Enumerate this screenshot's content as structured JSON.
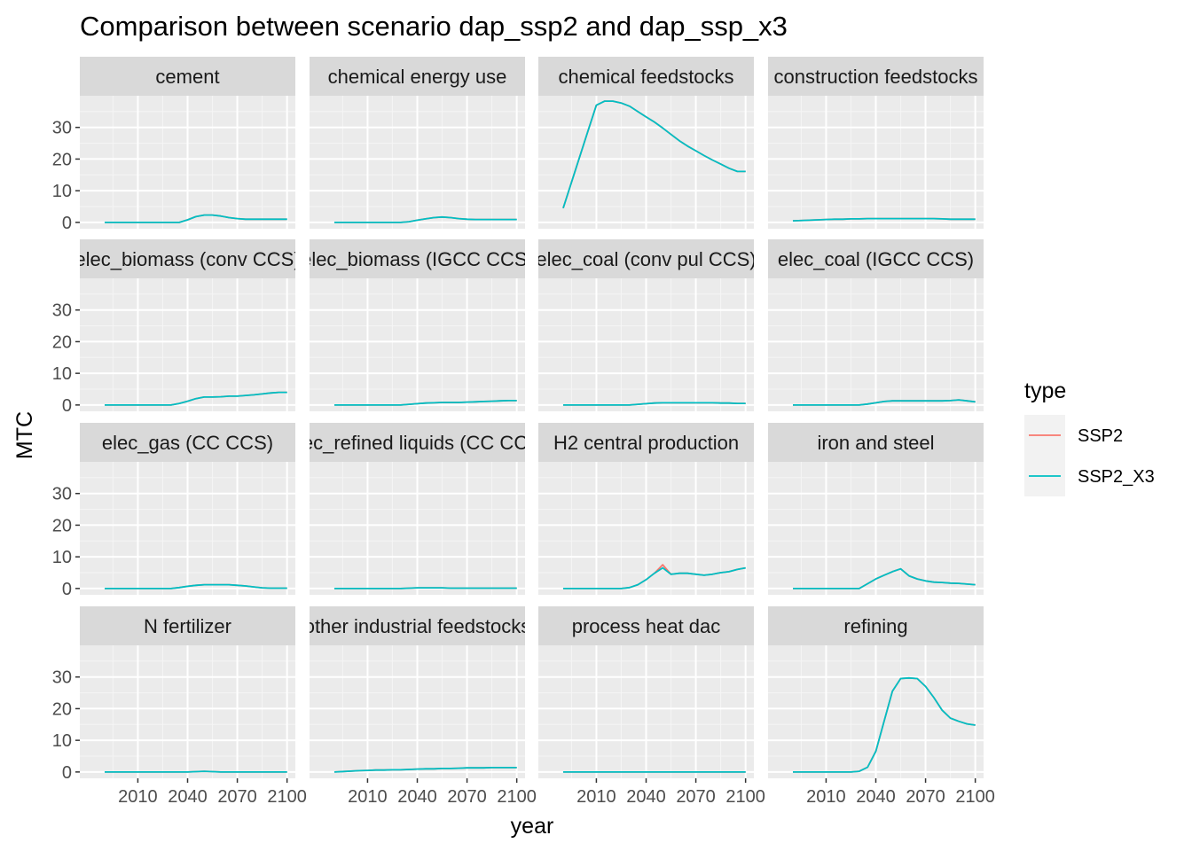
{
  "chart_data": {
    "type": "line",
    "title": "Comparison between scenario dap_ssp2 and dap_ssp_x3",
    "xlabel": "year",
    "ylabel": "MTC",
    "xlim": [
      1975,
      2105
    ],
    "ylim": [
      -2,
      40
    ],
    "x_ticks": [
      2010,
      2040,
      2070,
      2100
    ],
    "x_tick_labels": [
      "2010",
      "2040",
      "2070",
      "2100"
    ],
    "y_ticks": [
      0,
      10,
      20,
      30
    ],
    "y_tick_labels": [
      "0",
      "10",
      "20",
      "30"
    ],
    "grid": true,
    "facet_layout": {
      "rows": 4,
      "cols": 4
    },
    "legend": {
      "title": "type",
      "position": "right",
      "entries": [
        {
          "label": "SSP2",
          "color": "#F8766D"
        },
        {
          "label": "SSP2_X3",
          "color": "#00BFC4"
        }
      ]
    },
    "x": [
      1990,
      2005,
      2010,
      2015,
      2020,
      2025,
      2030,
      2035,
      2040,
      2045,
      2050,
      2055,
      2060,
      2065,
      2070,
      2075,
      2080,
      2085,
      2090,
      2095,
      2100
    ],
    "panels": [
      {
        "label": "cement",
        "series": [
          {
            "name": "SSP2",
            "values": [
              0,
              0,
              0,
              0,
              0,
              0,
              0,
              0,
              0.8,
              1.8,
              2.3,
              2.3,
              2.0,
              1.5,
              1.2,
              1.0,
              1.0,
              1.0,
              1.0,
              1.0,
              1.0
            ]
          },
          {
            "name": "SSP2_X3",
            "values": [
              0,
              0,
              0,
              0,
              0,
              0,
              0,
              0,
              0.8,
              1.8,
              2.3,
              2.3,
              2.0,
              1.5,
              1.2,
              1.0,
              1.0,
              1.0,
              1.0,
              1.0,
              1.0
            ]
          }
        ]
      },
      {
        "label": "chemical energy use",
        "series": [
          {
            "name": "SSP2",
            "values": [
              0,
              0,
              0,
              0,
              0,
              0,
              0,
              0.2,
              0.7,
              1.1,
              1.5,
              1.7,
              1.5,
              1.2,
              1.0,
              0.9,
              0.9,
              0.9,
              0.9,
              0.9,
              0.9
            ]
          },
          {
            "name": "SSP2_X3",
            "values": [
              0,
              0,
              0,
              0,
              0,
              0,
              0,
              0.2,
              0.7,
              1.1,
              1.5,
              1.7,
              1.5,
              1.2,
              1.0,
              0.9,
              0.9,
              0.9,
              0.9,
              0.9,
              0.9
            ]
          }
        ]
      },
      {
        "label": "chemical feedstocks",
        "series": [
          {
            "name": "SSP2",
            "values": [
              4.5,
              29,
              37,
              38.3,
              38.3,
              37.7,
              36.7,
              35.0,
              33.3,
              31.7,
              29.8,
              27.8,
              25.8,
              24.1,
              22.6,
              21.1,
              19.7,
              18.4,
              17.1,
              16.1,
              16.1
            ]
          },
          {
            "name": "SSP2_X3",
            "values": [
              4.5,
              29,
              37,
              38.3,
              38.3,
              37.7,
              36.7,
              35.0,
              33.3,
              31.7,
              29.8,
              27.8,
              25.8,
              24.1,
              22.6,
              21.1,
              19.7,
              18.4,
              17.1,
              16.1,
              16.1
            ]
          }
        ]
      },
      {
        "label": "construction feedstocks",
        "series": [
          {
            "name": "SSP2",
            "values": [
              0.5,
              0.8,
              0.9,
              1.0,
              1.0,
              1.1,
              1.1,
              1.2,
              1.2,
              1.2,
              1.2,
              1.2,
              1.2,
              1.2,
              1.2,
              1.2,
              1.1,
              1.0,
              1.0,
              1.0,
              1.0
            ]
          },
          {
            "name": "SSP2_X3",
            "values": [
              0.5,
              0.8,
              0.9,
              1.0,
              1.0,
              1.1,
              1.1,
              1.2,
              1.2,
              1.2,
              1.2,
              1.2,
              1.2,
              1.2,
              1.2,
              1.2,
              1.1,
              1.0,
              1.0,
              1.0,
              1.0
            ]
          }
        ]
      },
      {
        "label": "elec_biomass (conv CCS)",
        "series": [
          {
            "name": "SSP2",
            "values": [
              0,
              0,
              0,
              0,
              0,
              0,
              0,
              0.5,
              1.2,
              2.0,
              2.5,
              2.5,
              2.6,
              2.8,
              2.8,
              3.0,
              3.2,
              3.5,
              3.8,
              4.0,
              4.0
            ]
          },
          {
            "name": "SSP2_X3",
            "values": [
              0,
              0,
              0,
              0,
              0,
              0,
              0,
              0.5,
              1.2,
              2.0,
              2.5,
              2.5,
              2.6,
              2.8,
              2.8,
              3.0,
              3.2,
              3.5,
              3.8,
              4.0,
              4.0
            ]
          }
        ]
      },
      {
        "label": "elec_biomass (IGCC CCS)",
        "series": [
          {
            "name": "SSP2",
            "values": [
              0,
              0,
              0,
              0,
              0,
              0,
              0,
              0.2,
              0.4,
              0.6,
              0.7,
              0.8,
              0.8,
              0.8,
              0.9,
              1.0,
              1.1,
              1.2,
              1.3,
              1.4,
              1.4
            ]
          },
          {
            "name": "SSP2_X3",
            "values": [
              0,
              0,
              0,
              0,
              0,
              0,
              0,
              0.2,
              0.4,
              0.6,
              0.7,
              0.8,
              0.8,
              0.8,
              0.9,
              1.0,
              1.1,
              1.2,
              1.3,
              1.4,
              1.4
            ]
          }
        ]
      },
      {
        "label": "elec_coal (conv pul CCS)",
        "series": [
          {
            "name": "SSP2",
            "values": [
              0,
              0,
              0,
              0,
              0,
              0,
              0,
              0.2,
              0.4,
              0.6,
              0.7,
              0.7,
              0.7,
              0.7,
              0.7,
              0.7,
              0.7,
              0.6,
              0.6,
              0.5,
              0.5
            ]
          },
          {
            "name": "SSP2_X3",
            "values": [
              0,
              0,
              0,
              0,
              0,
              0,
              0,
              0.2,
              0.4,
              0.6,
              0.7,
              0.7,
              0.7,
              0.7,
              0.7,
              0.7,
              0.7,
              0.6,
              0.6,
              0.5,
              0.5
            ]
          }
        ]
      },
      {
        "label": "elec_coal (IGCC CCS)",
        "series": [
          {
            "name": "SSP2",
            "values": [
              0,
              0,
              0,
              0,
              0,
              0,
              0,
              0.3,
              0.7,
              1.1,
              1.3,
              1.3,
              1.3,
              1.3,
              1.3,
              1.3,
              1.3,
              1.4,
              1.6,
              1.3,
              1.0
            ]
          },
          {
            "name": "SSP2_X3",
            "values": [
              0,
              0,
              0,
              0,
              0,
              0,
              0,
              0.3,
              0.7,
              1.1,
              1.3,
              1.3,
              1.3,
              1.3,
              1.3,
              1.3,
              1.3,
              1.4,
              1.6,
              1.3,
              1.0
            ]
          }
        ]
      },
      {
        "label": "elec_gas (CC CCS)",
        "series": [
          {
            "name": "SSP2",
            "values": [
              0,
              0,
              0,
              0,
              0,
              0,
              0,
              0.3,
              0.7,
              1.0,
              1.2,
              1.2,
              1.2,
              1.2,
              1.0,
              0.8,
              0.5,
              0.2,
              0.1,
              0.1,
              0.1
            ]
          },
          {
            "name": "SSP2_X3",
            "values": [
              0,
              0,
              0,
              0,
              0,
              0,
              0,
              0.3,
              0.7,
              1.0,
              1.2,
              1.2,
              1.2,
              1.2,
              1.0,
              0.8,
              0.5,
              0.2,
              0.1,
              0.1,
              0.1
            ]
          }
        ]
      },
      {
        "label": "elec_refined liquids (CC CCS)",
        "series": [
          {
            "name": "SSP2",
            "values": [
              0,
              0,
              0,
              0,
              0,
              0,
              0,
              0.1,
              0.2,
              0.2,
              0.2,
              0.2,
              0.1,
              0.1,
              0.1,
              0.1,
              0.1,
              0.1,
              0.1,
              0.1,
              0.1
            ]
          },
          {
            "name": "SSP2_X3",
            "values": [
              0,
              0,
              0,
              0,
              0,
              0,
              0,
              0.1,
              0.2,
              0.2,
              0.2,
              0.2,
              0.1,
              0.1,
              0.1,
              0.1,
              0.1,
              0.1,
              0.1,
              0.1,
              0.1
            ]
          }
        ]
      },
      {
        "label": "H2 central production",
        "series": [
          {
            "name": "SSP2",
            "values": [
              0,
              0,
              0,
              0,
              0,
              0,
              0.3,
              1.2,
              2.8,
              4.8,
              7.5,
              4.5,
              4.8,
              4.8,
              4.5,
              4.2,
              4.5,
              5.0,
              5.3,
              6.0,
              6.5
            ]
          },
          {
            "name": "SSP2_X3",
            "values": [
              0,
              0,
              0,
              0,
              0,
              0,
              0.3,
              1.2,
              2.8,
              4.8,
              6.5,
              4.5,
              4.8,
              4.8,
              4.5,
              4.2,
              4.5,
              5.0,
              5.3,
              6.0,
              6.5
            ]
          }
        ]
      },
      {
        "label": "iron and steel",
        "series": [
          {
            "name": "SSP2",
            "values": [
              0,
              0,
              0,
              0,
              0,
              0,
              0,
              1.5,
              3.0,
              4.2,
              5.3,
              6.2,
              4.0,
              3.0,
              2.4,
              2.0,
              1.9,
              1.7,
              1.6,
              1.4,
              1.2
            ]
          },
          {
            "name": "SSP2_X3",
            "values": [
              0,
              0,
              0,
              0,
              0,
              0,
              0,
              1.5,
              3.0,
              4.2,
              5.3,
              6.2,
              4.0,
              3.0,
              2.4,
              2.0,
              1.9,
              1.7,
              1.6,
              1.4,
              1.2
            ]
          }
        ]
      },
      {
        "label": "N fertilizer",
        "series": [
          {
            "name": "SSP2",
            "values": [
              0,
              0,
              0,
              0,
              0,
              0,
              0,
              0,
              0,
              0.1,
              0.2,
              0.1,
              0,
              0,
              0,
              0,
              0,
              0,
              0,
              0,
              0
            ]
          },
          {
            "name": "SSP2_X3",
            "values": [
              0,
              0,
              0,
              0,
              0,
              0,
              0,
              0,
              0,
              0.1,
              0.2,
              0.1,
              0,
              0,
              0,
              0,
              0,
              0,
              0,
              0,
              0
            ]
          }
        ]
      },
      {
        "label": "other industrial feedstocks",
        "series": [
          {
            "name": "SSP2",
            "values": [
              0,
              0.4,
              0.5,
              0.6,
              0.6,
              0.7,
              0.7,
              0.8,
              0.9,
              1.0,
              1.0,
              1.1,
              1.1,
              1.2,
              1.3,
              1.3,
              1.3,
              1.4,
              1.4,
              1.4,
              1.4
            ]
          },
          {
            "name": "SSP2_X3",
            "values": [
              0,
              0.4,
              0.5,
              0.6,
              0.6,
              0.7,
              0.7,
              0.8,
              0.9,
              1.0,
              1.0,
              1.1,
              1.1,
              1.2,
              1.3,
              1.3,
              1.3,
              1.4,
              1.4,
              1.4,
              1.4
            ]
          }
        ]
      },
      {
        "label": "process heat dac",
        "series": [
          {
            "name": "SSP2",
            "values": [
              0,
              0,
              0,
              0,
              0,
              0,
              0,
              0,
              0,
              0,
              0,
              0,
              0,
              0,
              0,
              0,
              0,
              0,
              0,
              0,
              0
            ]
          },
          {
            "name": "SSP2_X3",
            "values": [
              0,
              0,
              0,
              0,
              0,
              0,
              0,
              0,
              0,
              0,
              0,
              0,
              0,
              0,
              0,
              0,
              0,
              0,
              0,
              0,
              0
            ]
          }
        ]
      },
      {
        "label": "refining",
        "series": [
          {
            "name": "SSP2",
            "values": [
              0,
              0,
              0,
              0,
              0,
              0,
              0.2,
              1.5,
              6.5,
              16.0,
              25.5,
              29.5,
              29.7,
              29.5,
              27.0,
              23.5,
              19.5,
              17.0,
              16.0,
              15.2,
              14.8
            ]
          },
          {
            "name": "SSP2_X3",
            "values": [
              0,
              0,
              0,
              0,
              0,
              0,
              0.2,
              1.5,
              6.5,
              16.0,
              25.5,
              29.5,
              29.7,
              29.5,
              27.0,
              23.5,
              19.5,
              17.0,
              16.0,
              15.2,
              14.8
            ]
          }
        ]
      }
    ]
  }
}
